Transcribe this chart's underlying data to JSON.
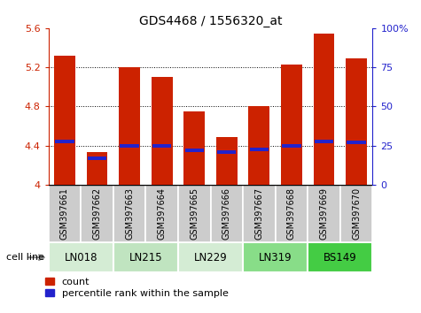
{
  "title": "GDS4468 / 1556320_at",
  "samples": [
    "GSM397661",
    "GSM397662",
    "GSM397663",
    "GSM397664",
    "GSM397665",
    "GSM397666",
    "GSM397667",
    "GSM397668",
    "GSM397669",
    "GSM397670"
  ],
  "count_values": [
    5.32,
    4.33,
    5.2,
    5.1,
    4.75,
    4.49,
    4.8,
    5.23,
    5.54,
    5.29
  ],
  "percentile_values": [
    4.44,
    4.27,
    4.4,
    4.4,
    4.35,
    4.33,
    4.36,
    4.4,
    4.44,
    4.43
  ],
  "ymin": 4.0,
  "ymax": 5.6,
  "yticks": [
    4.0,
    4.4,
    4.8,
    5.2,
    5.6
  ],
  "ytick_labels": [
    "4",
    "4.4",
    "4.8",
    "5.2",
    "5.6"
  ],
  "y2ticks": [
    0,
    25,
    50,
    75,
    100
  ],
  "y2tick_labels": [
    "0",
    "25",
    "50",
    "75",
    "100%"
  ],
  "bar_color": "#cc2200",
  "percentile_color": "#2222cc",
  "bar_width": 0.65,
  "cell_lines": [
    {
      "name": "LN018",
      "samples": [
        0,
        1
      ],
      "color": "#d4ecd4"
    },
    {
      "name": "LN215",
      "samples": [
        2,
        3
      ],
      "color": "#c0e4c0"
    },
    {
      "name": "LN229",
      "samples": [
        4,
        5
      ],
      "color": "#d4ecd4"
    },
    {
      "name": "LN319",
      "samples": [
        6,
        7
      ],
      "color": "#88dd88"
    },
    {
      "name": "BS149",
      "samples": [
        8,
        9
      ],
      "color": "#44cc44"
    }
  ],
  "xlabel_color": "#cc2200",
  "y2label_color": "#2222cc",
  "title_fontsize": 10,
  "tick_fontsize": 8,
  "legend_fontsize": 8,
  "sample_fontsize": 7,
  "sample_bg_color": "#cccccc",
  "grid_linestyle": ":",
  "grid_color": "black",
  "grid_linewidth": 0.7,
  "grid_yticks": [
    4.4,
    4.8,
    5.2
  ]
}
